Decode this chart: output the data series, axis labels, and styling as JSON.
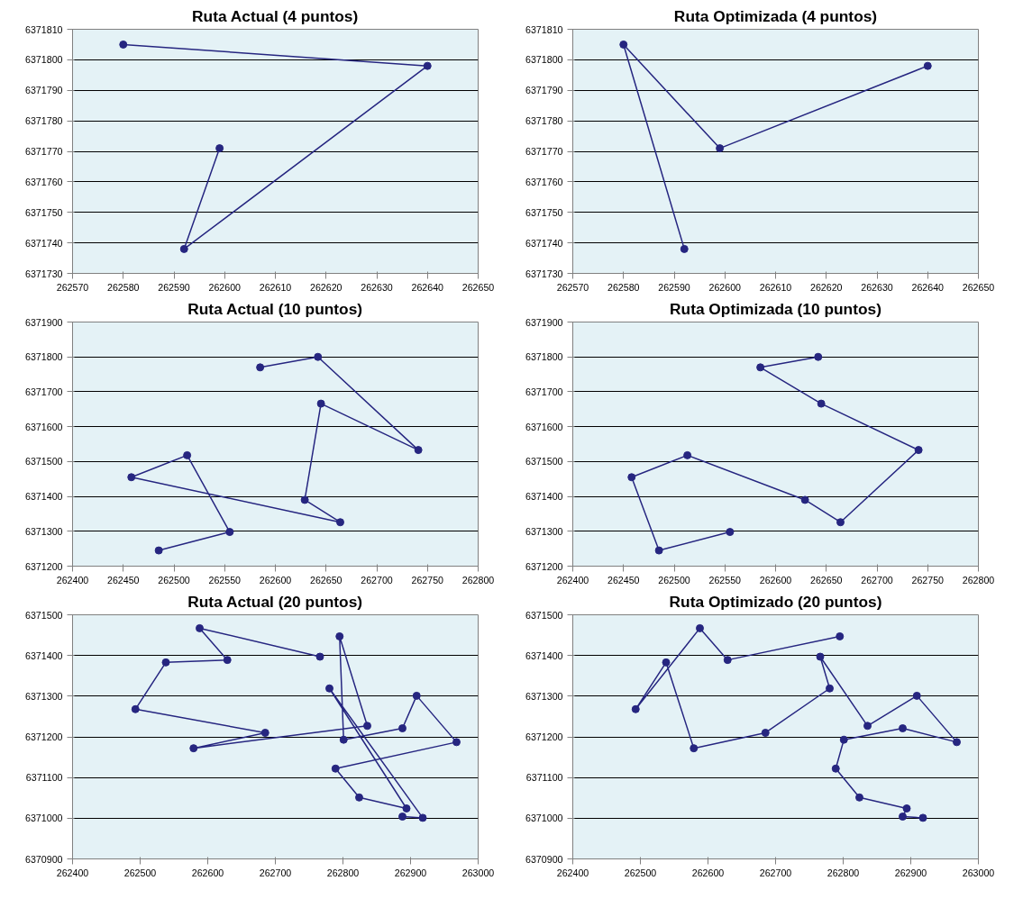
{
  "chart_data": [
    {
      "type": "line",
      "title": "Ruta Actual (4 puntos)",
      "marker": "circle",
      "grid": "y",
      "x": [
        262580,
        262640,
        262592,
        262599
      ],
      "series": [
        {
          "color": "#262680",
          "values": [
            6371805,
            6371798,
            6371738,
            6371771
          ]
        }
      ],
      "xlim": [
        262570,
        262650
      ],
      "xticks": [
        262570,
        262580,
        262590,
        262600,
        262610,
        262620,
        262630,
        262640,
        262650
      ],
      "ylim": [
        6371730,
        6371810
      ],
      "yticks": [
        6371730,
        6371740,
        6371750,
        6371760,
        6371770,
        6371780,
        6371790,
        6371800,
        6371810
      ]
    },
    {
      "type": "line",
      "title": "Ruta Optimizada (4 puntos)",
      "marker": "circle",
      "grid": "y",
      "x": [
        262592,
        262580,
        262599,
        262640
      ],
      "series": [
        {
          "color": "#262680",
          "values": [
            6371738,
            6371805,
            6371771,
            6371798
          ]
        }
      ],
      "xlim": [
        262570,
        262650
      ],
      "xticks": [
        262570,
        262580,
        262590,
        262600,
        262610,
        262620,
        262630,
        262640,
        262650
      ],
      "ylim": [
        6371730,
        6371810
      ],
      "yticks": [
        6371730,
        6371740,
        6371750,
        6371760,
        6371770,
        6371780,
        6371790,
        6371800,
        6371810
      ]
    },
    {
      "type": "line",
      "title": "Ruta Actual (10 puntos)",
      "marker": "circle",
      "grid": "y",
      "x": [
        262585,
        262642,
        262741,
        262645,
        262629,
        262664,
        262458,
        262513,
        262555,
        262485
      ],
      "series": [
        {
          "color": "#262680",
          "values": [
            6371770,
            6371800,
            6371533,
            6371666,
            6371390,
            6371326,
            6371455,
            6371518,
            6371298,
            6371245
          ]
        }
      ],
      "xlim": [
        262400,
        262800
      ],
      "xticks": [
        262400,
        262450,
        262500,
        262550,
        262600,
        262650,
        262700,
        262750,
        262800
      ],
      "ylim": [
        6371200,
        6371900
      ],
      "yticks": [
        6371200,
        6371300,
        6371400,
        6371500,
        6371600,
        6371700,
        6371800,
        6371900
      ]
    },
    {
      "type": "line",
      "title": "Ruta Optimizada (10 puntos)",
      "marker": "circle",
      "grid": "y",
      "x": [
        262642,
        262585,
        262645,
        262741,
        262664,
        262629,
        262513,
        262458,
        262485,
        262555
      ],
      "series": [
        {
          "color": "#262680",
          "values": [
            6371800,
            6371770,
            6371666,
            6371533,
            6371326,
            6371390,
            6371518,
            6371455,
            6371245,
            6371298
          ]
        }
      ],
      "xlim": [
        262400,
        262800
      ],
      "xticks": [
        262400,
        262450,
        262500,
        262550,
        262600,
        262650,
        262700,
        262750,
        262800
      ],
      "ylim": [
        6371200,
        6371900
      ],
      "yticks": [
        6371200,
        6371300,
        6371400,
        6371500,
        6371600,
        6371700,
        6371800,
        6371900
      ]
    },
    {
      "type": "line",
      "title": "Ruta Actual (20 puntos)",
      "marker": "circle",
      "grid": "y",
      "x": [
        262766,
        262588,
        262629,
        262538,
        262493,
        262685,
        262579,
        262836,
        262795,
        262801,
        262888,
        262909,
        262968,
        262789,
        262824,
        262894,
        262780,
        262918,
        262888
      ],
      "series": [
        {
          "color": "#262680",
          "values": [
            6371397,
            6371467,
            6371389,
            6371383,
            6371268,
            6371210,
            6371172,
            6371227,
            6371447,
            6371193,
            6371221,
            6371301,
            6371187,
            6371122,
            6371051,
            6371024,
            6371319,
            6371001,
            6371004
          ]
        }
      ],
      "xlim": [
        262400,
        263000
      ],
      "xticks": [
        262400,
        262500,
        262600,
        262700,
        262800,
        262900,
        263000
      ],
      "ylim": [
        6370900,
        6371500
      ],
      "yticks": [
        6370900,
        6371000,
        6371100,
        6371200,
        6371300,
        6371400,
        6371500
      ]
    },
    {
      "type": "line",
      "title": "Ruta Optimizado (20 puntos)",
      "marker": "circle",
      "grid": "y",
      "x": [
        262795,
        262629,
        262588,
        262493,
        262538,
        262579,
        262685,
        262780,
        262766,
        262836,
        262909,
        262968,
        262888,
        262801,
        262789,
        262824,
        262894,
        262888,
        262918
      ],
      "series": [
        {
          "color": "#262680",
          "values": [
            6371447,
            6371389,
            6371467,
            6371268,
            6371383,
            6371172,
            6371210,
            6371319,
            6371397,
            6371227,
            6371301,
            6371187,
            6371221,
            6371193,
            6371122,
            6371051,
            6371024,
            6371004,
            6371001
          ]
        }
      ],
      "xlim": [
        262400,
        263000
      ],
      "xticks": [
        262400,
        262500,
        262600,
        262700,
        262800,
        262900,
        263000
      ],
      "ylim": [
        6370900,
        6371500
      ],
      "yticks": [
        6370900,
        6371000,
        6371100,
        6371200,
        6371300,
        6371400,
        6371500
      ]
    }
  ]
}
